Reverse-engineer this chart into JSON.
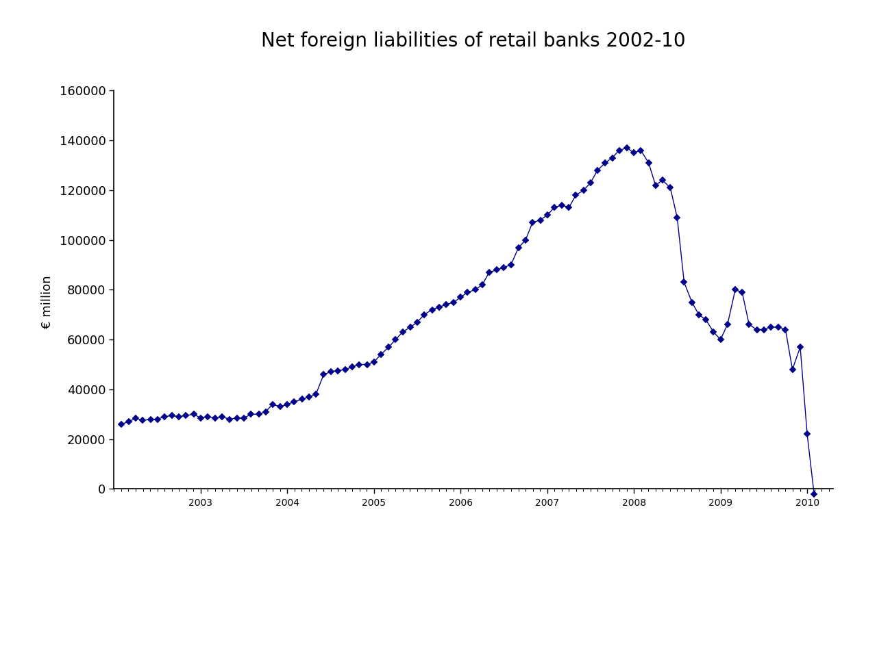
{
  "title": "Net foreign liabilities of retail banks 2002-10",
  "ylabel": "€ million",
  "ylim": [
    -20000,
    170000
  ],
  "yticks": [
    0,
    20000,
    40000,
    60000,
    80000,
    100000,
    120000,
    140000,
    160000
  ],
  "xlim": [
    2002.0,
    2010.3
  ],
  "xticks": [
    2003,
    2004,
    2005,
    2006,
    2007,
    2008,
    2009,
    2010
  ],
  "line_color": "#00008B",
  "marker_color": "#00008B",
  "background_color": "#ffffff",
  "title_fontsize": 20,
  "label_fontsize": 13,
  "tick_fontsize": 13,
  "data": [
    [
      2002.08,
      26000
    ],
    [
      2002.17,
      27000
    ],
    [
      2002.25,
      28500
    ],
    [
      2002.33,
      27500
    ],
    [
      2002.42,
      28000
    ],
    [
      2002.5,
      28000
    ],
    [
      2002.58,
      29000
    ],
    [
      2002.67,
      29500
    ],
    [
      2002.75,
      29000
    ],
    [
      2002.83,
      29500
    ],
    [
      2002.92,
      30000
    ],
    [
      2003.0,
      28500
    ],
    [
      2003.08,
      29000
    ],
    [
      2003.17,
      28500
    ],
    [
      2003.25,
      29000
    ],
    [
      2003.33,
      28000
    ],
    [
      2003.42,
      28500
    ],
    [
      2003.5,
      28500
    ],
    [
      2003.58,
      30000
    ],
    [
      2003.67,
      30000
    ],
    [
      2003.75,
      31000
    ],
    [
      2003.83,
      34000
    ],
    [
      2003.92,
      33000
    ],
    [
      2004.0,
      34000
    ],
    [
      2004.08,
      35000
    ],
    [
      2004.17,
      36000
    ],
    [
      2004.25,
      37000
    ],
    [
      2004.33,
      38000
    ],
    [
      2004.42,
      46000
    ],
    [
      2004.5,
      47000
    ],
    [
      2004.58,
      47500
    ],
    [
      2004.67,
      48000
    ],
    [
      2004.75,
      49000
    ],
    [
      2004.83,
      50000
    ],
    [
      2004.92,
      50000
    ],
    [
      2005.0,
      51000
    ],
    [
      2005.08,
      54000
    ],
    [
      2005.17,
      57000
    ],
    [
      2005.25,
      60000
    ],
    [
      2005.33,
      63000
    ],
    [
      2005.42,
      65000
    ],
    [
      2005.5,
      67000
    ],
    [
      2005.58,
      70000
    ],
    [
      2005.67,
      72000
    ],
    [
      2005.75,
      73000
    ],
    [
      2005.83,
      74000
    ],
    [
      2005.92,
      75000
    ],
    [
      2006.0,
      77000
    ],
    [
      2006.08,
      79000
    ],
    [
      2006.17,
      80000
    ],
    [
      2006.25,
      82000
    ],
    [
      2006.33,
      87000
    ],
    [
      2006.42,
      88000
    ],
    [
      2006.5,
      89000
    ],
    [
      2006.58,
      90000
    ],
    [
      2006.67,
      97000
    ],
    [
      2006.75,
      100000
    ],
    [
      2006.83,
      107000
    ],
    [
      2006.92,
      108000
    ],
    [
      2007.0,
      110000
    ],
    [
      2007.08,
      113000
    ],
    [
      2007.17,
      114000
    ],
    [
      2007.25,
      113000
    ],
    [
      2007.33,
      118000
    ],
    [
      2007.42,
      120000
    ],
    [
      2007.5,
      123000
    ],
    [
      2007.58,
      128000
    ],
    [
      2007.67,
      131000
    ],
    [
      2007.75,
      133000
    ],
    [
      2007.83,
      136000
    ],
    [
      2007.92,
      137000
    ],
    [
      2008.0,
      135000
    ],
    [
      2008.08,
      136000
    ],
    [
      2008.17,
      131000
    ],
    [
      2008.25,
      122000
    ],
    [
      2008.33,
      124000
    ],
    [
      2008.42,
      121000
    ],
    [
      2008.5,
      109000
    ],
    [
      2008.58,
      83000
    ],
    [
      2008.67,
      75000
    ],
    [
      2008.75,
      70000
    ],
    [
      2008.83,
      68000
    ],
    [
      2008.92,
      63000
    ],
    [
      2009.0,
      60000
    ],
    [
      2009.08,
      66000
    ],
    [
      2009.17,
      80000
    ],
    [
      2009.25,
      79000
    ],
    [
      2009.33,
      66000
    ],
    [
      2009.42,
      64000
    ],
    [
      2009.5,
      64000
    ],
    [
      2009.58,
      65000
    ],
    [
      2009.67,
      65000
    ],
    [
      2009.75,
      64000
    ],
    [
      2009.83,
      48000
    ],
    [
      2009.92,
      57000
    ],
    [
      2010.0,
      22000
    ],
    [
      2010.08,
      -2000
    ]
  ]
}
